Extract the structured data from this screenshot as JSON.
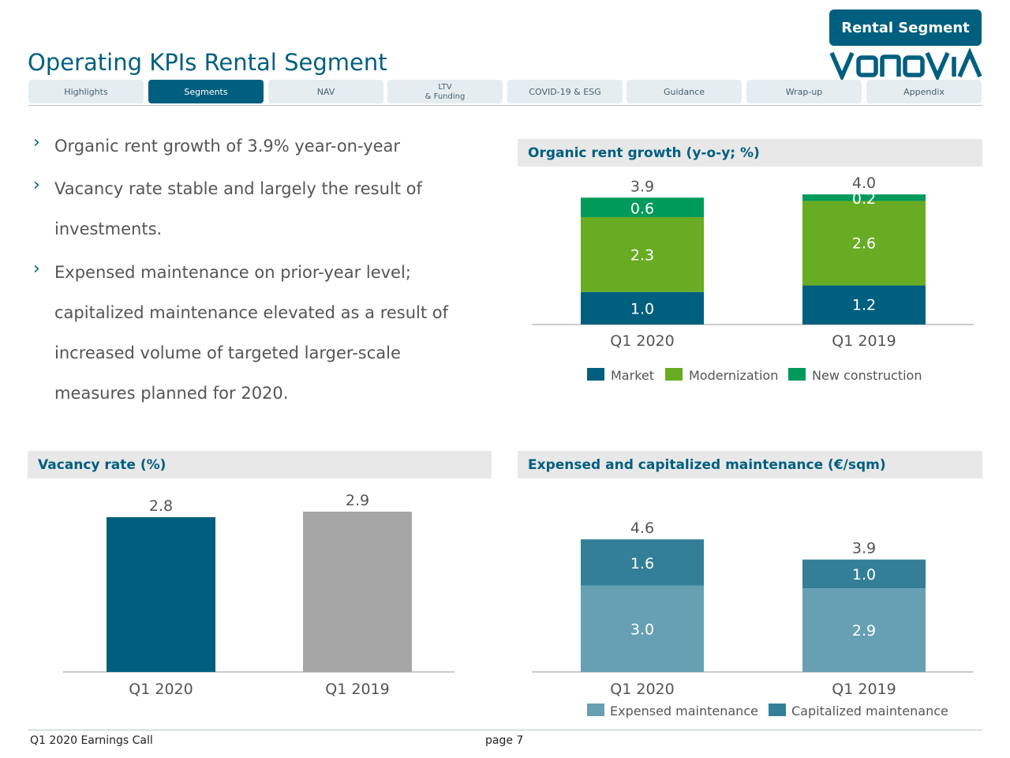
{
  "header": {
    "segment_badge": "Rental Segment",
    "title": "Operating KPIs Rental Segment",
    "logo_text": "VONOVIA"
  },
  "tabs": [
    {
      "label": "Highlights",
      "active": false
    },
    {
      "label": "Segments",
      "active": true
    },
    {
      "label": "NAV",
      "active": false
    },
    {
      "label_line1": "LTV",
      "label_line2": "& Funding",
      "active": false
    },
    {
      "label": "COVID-19 & ESG",
      "active": false
    },
    {
      "label": "Guidance",
      "active": false
    },
    {
      "label": "Wrap-up",
      "active": false
    },
    {
      "label": "Appendix",
      "active": false
    }
  ],
  "bullets": [
    {
      "lines": [
        "Organic rent growth of 3.9% year-on-year"
      ]
    },
    {
      "lines": [
        "Vacancy rate stable and largely the result of",
        "investments."
      ]
    },
    {
      "lines": [
        "Expensed maintenance on prior-year level;",
        "capitalized maintenance elevated as a result of",
        "increased volume of targeted larger-scale",
        "measures planned for 2020."
      ]
    }
  ],
  "colors": {
    "market": "#005f7f",
    "modernization": "#67ac23",
    "new_construction": "#009a5a",
    "vacancy_2020": "#005f7f",
    "vacancy_2019": "#a6a6a6",
    "expensed": "#66a0b2",
    "capitalized": "#337f98"
  },
  "chart_data": [
    {
      "id": "organic-rent-growth",
      "type": "bar",
      "stacked": true,
      "title": "Organic rent growth (y-o-y; %)",
      "categories": [
        "Q1 2020",
        "Q1 2019"
      ],
      "series": [
        {
          "name": "Market",
          "values": [
            1.0,
            1.2
          ]
        },
        {
          "name": "Modernization",
          "values": [
            2.3,
            2.6
          ]
        },
        {
          "name": "New construction",
          "values": [
            0.6,
            0.2
          ]
        }
      ],
      "totals": [
        3.9,
        4.0
      ],
      "legend": "bottom"
    },
    {
      "id": "vacancy-rate",
      "type": "bar",
      "stacked": false,
      "title": "Vacancy rate (%)",
      "categories": [
        "Q1 2020",
        "Q1 2019"
      ],
      "values": [
        2.8,
        2.9
      ]
    },
    {
      "id": "maintenance",
      "type": "bar",
      "stacked": true,
      "title": "Expensed and capitalized maintenance (€/sqm)",
      "categories": [
        "Q1 2020",
        "Q1 2019"
      ],
      "series": [
        {
          "name": "Expensed maintenance",
          "values": [
            3.0,
            2.9
          ]
        },
        {
          "name": "Capitalized maintenance",
          "values": [
            1.6,
            1.0
          ]
        }
      ],
      "totals": [
        4.6,
        3.9
      ],
      "legend": "bottom"
    }
  ],
  "footer": {
    "left": "Q1 2020 Earnings Call",
    "page": "page 7"
  }
}
